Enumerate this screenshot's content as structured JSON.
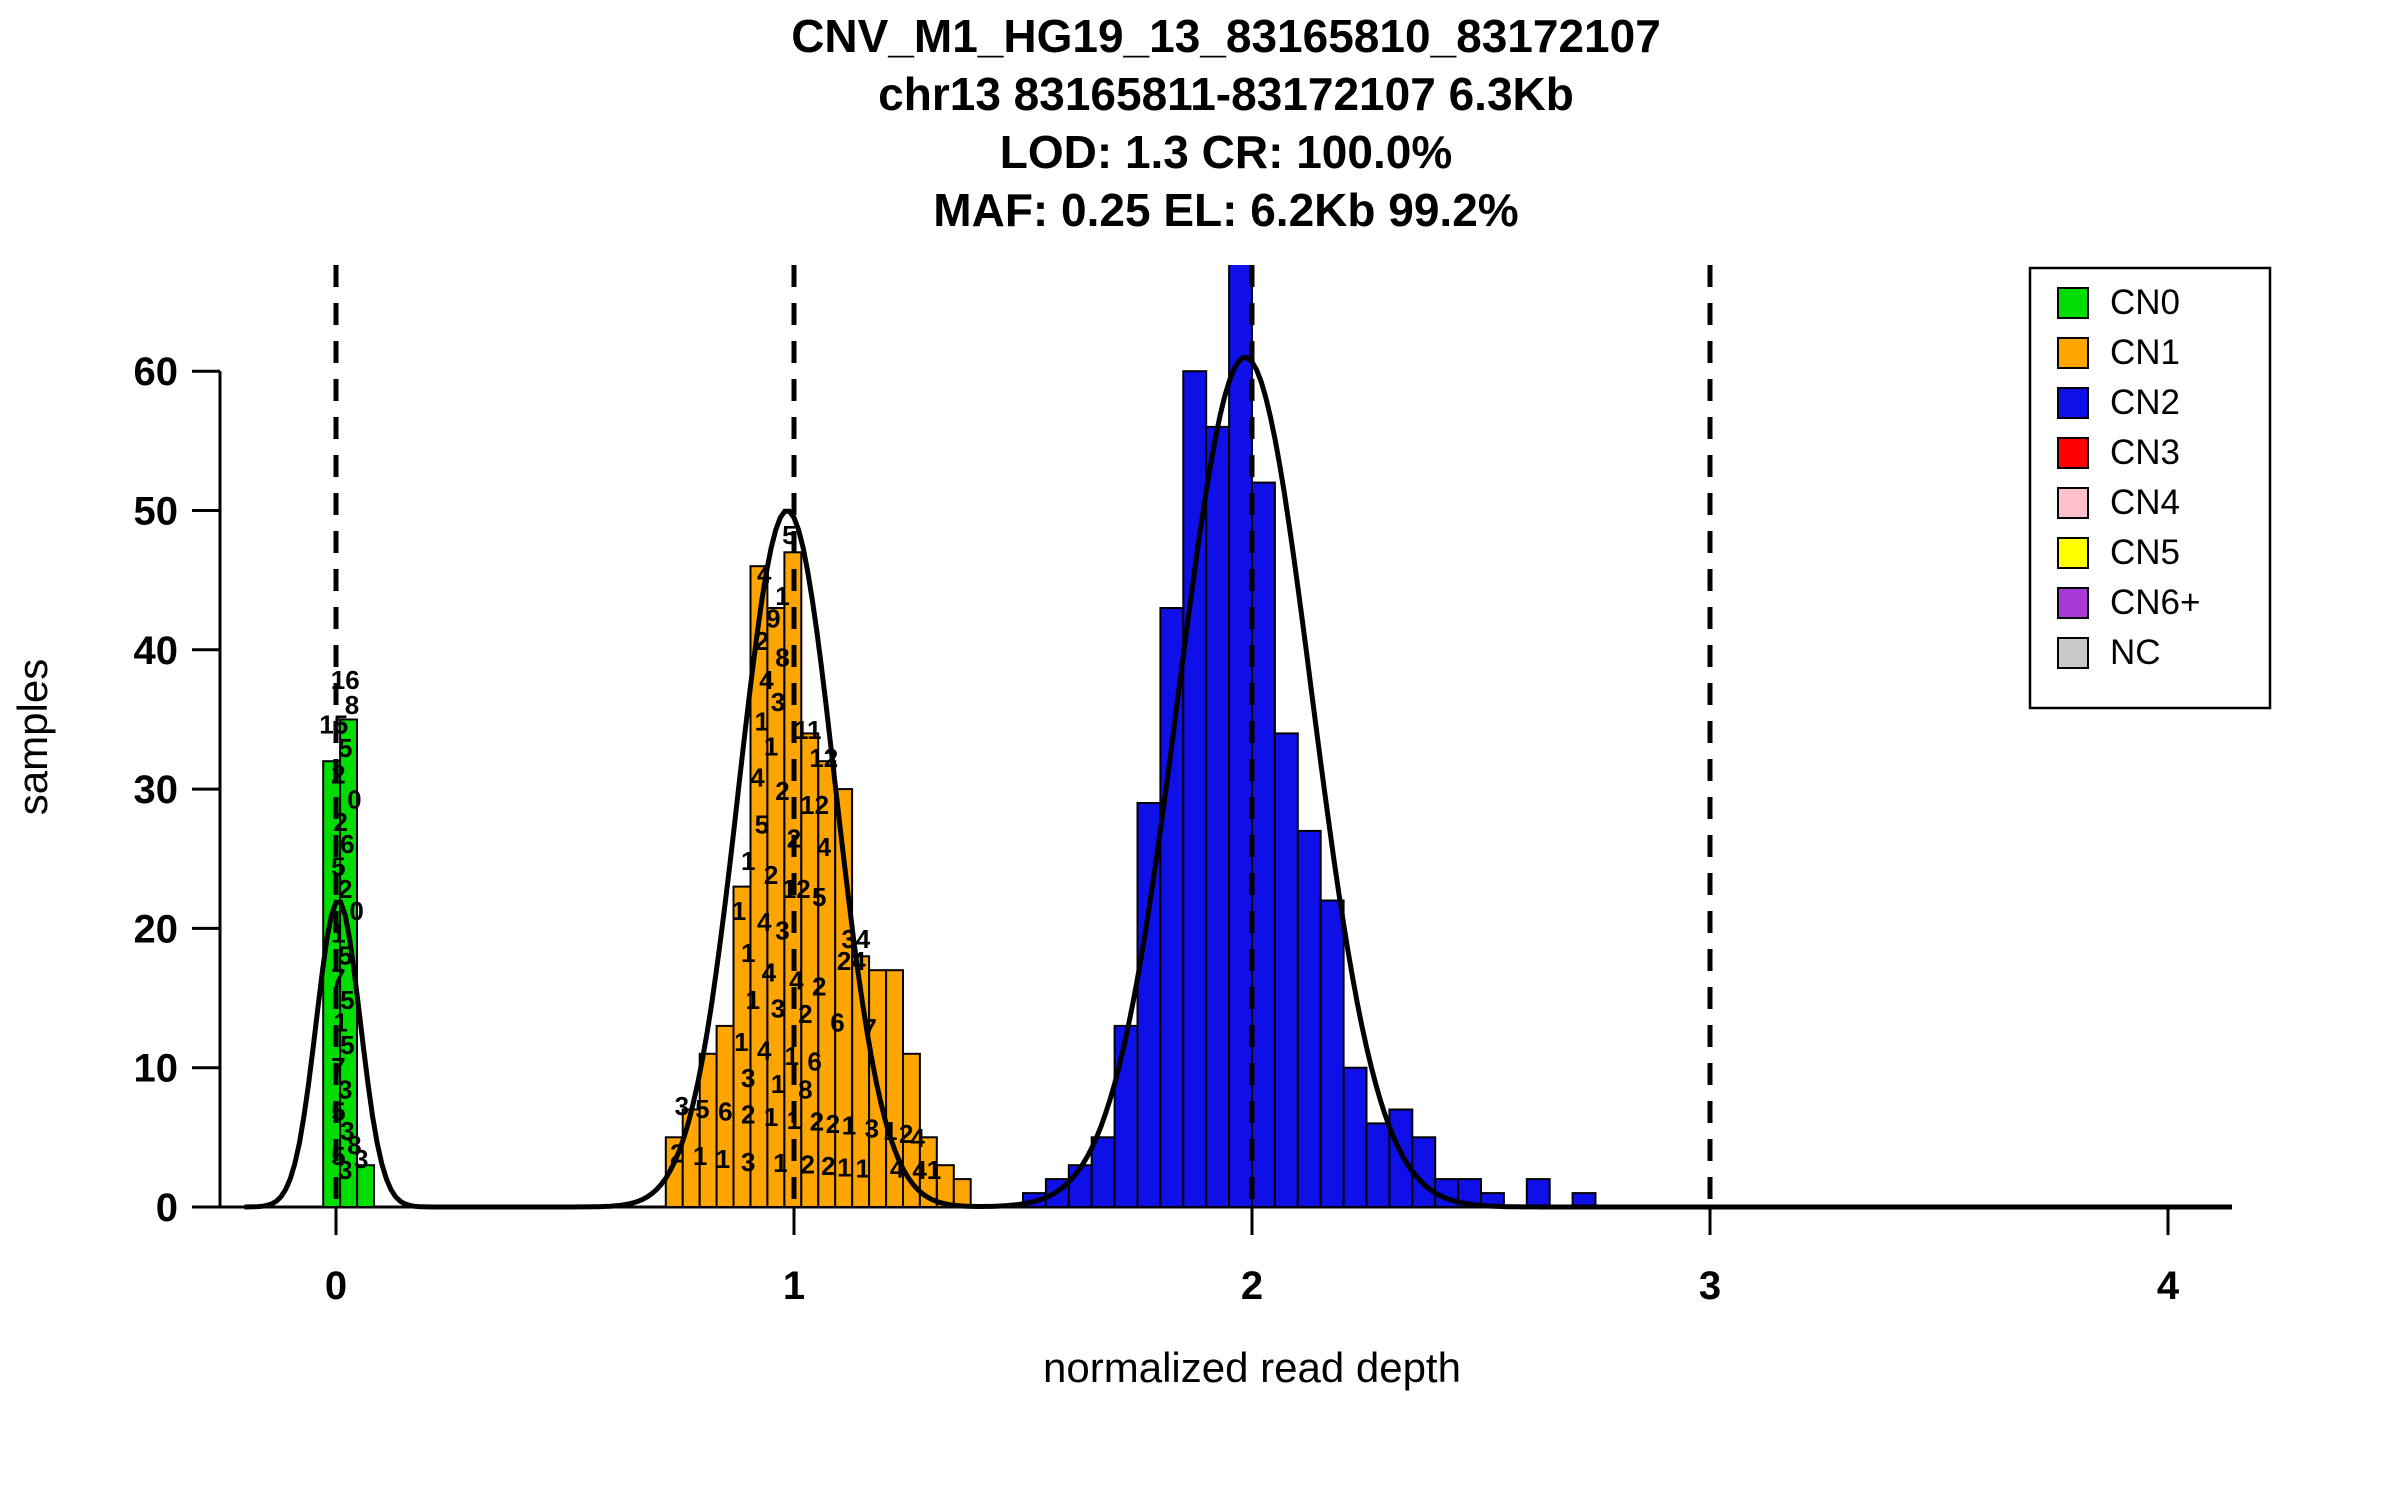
{
  "figure": {
    "background": "#ffffff"
  },
  "chart_data": {
    "type": "bar",
    "title_lines": [
      "CNV_M1_HG19_13_83165810_83172107",
      "chr13 83165811-83172107 6.3Kb",
      "LOD: 1.3 CR: 100.0%",
      "MAF: 0.25 EL: 6.2Kb 99.2%"
    ],
    "xlabel": "normalized read depth",
    "ylabel": "samples",
    "xlim": [
      -0.25,
      4.25
    ],
    "ylim": [
      0,
      67.5
    ],
    "xticks": [
      "0",
      "1",
      "2",
      "3",
      "4"
    ],
    "yticks": [
      "0",
      "10",
      "20",
      "30",
      "40",
      "50",
      "60"
    ],
    "grid": false,
    "dashed_guides_x": [
      0,
      1,
      2,
      3
    ],
    "series": [
      {
        "name": "CN0",
        "color": "#00DD00",
        "bin_width": 0.037,
        "bars": [
          [
            -0.028,
            32
          ],
          [
            0.009,
            35
          ],
          [
            0.046,
            3
          ]
        ]
      },
      {
        "name": "CN1",
        "color": "#FFA500",
        "bin_width": 0.037,
        "bars": [
          [
            0.72,
            5
          ],
          [
            0.757,
            7
          ],
          [
            0.794,
            11
          ],
          [
            0.831,
            13
          ],
          [
            0.868,
            23
          ],
          [
            0.905,
            46
          ],
          [
            0.942,
            43
          ],
          [
            0.979,
            47
          ],
          [
            1.016,
            34
          ],
          [
            1.053,
            32
          ],
          [
            1.09,
            30
          ],
          [
            1.127,
            18
          ],
          [
            1.164,
            17
          ],
          [
            1.201,
            17
          ],
          [
            1.238,
            11
          ],
          [
            1.275,
            5
          ],
          [
            1.312,
            3
          ],
          [
            1.349,
            2
          ]
        ]
      },
      {
        "name": "CN2",
        "color": "#0F0FE8",
        "bin_width": 0.05,
        "bars": [
          [
            1.5,
            1
          ],
          [
            1.55,
            2
          ],
          [
            1.6,
            3
          ],
          [
            1.65,
            5
          ],
          [
            1.7,
            13
          ],
          [
            1.75,
            29
          ],
          [
            1.8,
            43
          ],
          [
            1.85,
            60
          ],
          [
            1.9,
            56
          ],
          [
            1.95,
            69
          ],
          [
            2.0,
            52
          ],
          [
            2.05,
            34
          ],
          [
            2.1,
            27
          ],
          [
            2.15,
            22
          ],
          [
            2.2,
            10
          ],
          [
            2.25,
            6
          ],
          [
            2.3,
            7
          ],
          [
            2.35,
            5
          ],
          [
            2.4,
            2
          ],
          [
            2.45,
            2
          ],
          [
            2.5,
            1
          ],
          [
            2.6,
            2
          ],
          [
            2.7,
            1
          ]
        ]
      }
    ],
    "density_curves": [
      {
        "mean": 0.005,
        "sd": 0.048,
        "peak": 22
      },
      {
        "mean": 0.985,
        "sd": 0.105,
        "peak": 50
      },
      {
        "mean": 1.985,
        "sd": 0.145,
        "peak": 61
      }
    ],
    "overlay_labels": [
      [
        "16",
        0.02,
        37.2
      ],
      [
        "8",
        0.035,
        35.4
      ],
      [
        "15",
        -0.005,
        34.0
      ],
      [
        "5",
        0.02,
        32.3
      ],
      [
        "2",
        0.005,
        30.4
      ],
      [
        "0",
        0.04,
        28.6
      ],
      [
        "2",
        0.01,
        27.0
      ],
      [
        "6",
        0.025,
        25.4
      ],
      [
        "5",
        0.005,
        23.8
      ],
      [
        "2",
        0.02,
        22.2
      ],
      [
        "0",
        0.045,
        20.6
      ],
      [
        "1",
        0.005,
        19.0
      ],
      [
        "5",
        0.02,
        17.4
      ],
      [
        "7",
        0.005,
        15.8
      ],
      [
        "5",
        0.025,
        14.2
      ],
      [
        "1",
        0.01,
        12.6
      ],
      [
        "5",
        0.025,
        11.0
      ],
      [
        "7",
        0.005,
        9.4
      ],
      [
        "3",
        0.02,
        7.8
      ],
      [
        "5",
        0.005,
        6.2
      ],
      [
        "3",
        0.025,
        4.8
      ],
      [
        "8",
        0.04,
        3.8
      ],
      [
        "5",
        0.005,
        3.0
      ],
      [
        "3",
        0.055,
        2.8
      ],
      [
        "3",
        0.02,
        2.0
      ],
      [
        "5",
        0.99,
        47.6
      ],
      [
        "4",
        0.935,
        44.8
      ],
      [
        "1",
        0.975,
        43.2
      ],
      [
        "9",
        0.955,
        41.6
      ],
      [
        "2",
        0.93,
        40.0
      ],
      [
        "8",
        0.975,
        38.8
      ],
      [
        "4",
        0.94,
        37.2
      ],
      [
        "3",
        0.965,
        35.6
      ],
      [
        "1",
        0.93,
        34.2
      ],
      [
        "11",
        1.03,
        33.6
      ],
      [
        "1",
        0.95,
        32.4
      ],
      [
        "12",
        1.065,
        31.6
      ],
      [
        "4",
        0.92,
        30.2
      ],
      [
        "2",
        0.975,
        29.2
      ],
      [
        "12",
        1.045,
        28.2
      ],
      [
        "5",
        0.93,
        26.8
      ],
      [
        "2",
        1.0,
        25.8
      ],
      [
        "4",
        1.065,
        25.2
      ],
      [
        "1",
        0.9,
        24.2
      ],
      [
        "2",
        0.95,
        23.2
      ],
      [
        "12",
        1.005,
        22.2
      ],
      [
        "5",
        1.055,
        21.6
      ],
      [
        "1",
        0.88,
        20.6
      ],
      [
        "4",
        0.935,
        19.8
      ],
      [
        "3",
        0.975,
        19.2
      ],
      [
        "34",
        1.135,
        18.6
      ],
      [
        "1",
        0.9,
        17.6
      ],
      [
        "24",
        1.125,
        17.0
      ],
      [
        "4",
        0.945,
        16.2
      ],
      [
        "4",
        1.005,
        15.6
      ],
      [
        "2",
        1.055,
        15.2
      ],
      [
        "1",
        0.91,
        14.2
      ],
      [
        "3",
        0.965,
        13.6
      ],
      [
        "2",
        1.025,
        13.2
      ],
      [
        "6",
        1.095,
        12.6
      ],
      [
        "7",
        1.165,
        12.2
      ],
      [
        "1",
        0.885,
        11.2
      ],
      [
        "4",
        0.935,
        10.6
      ],
      [
        "1",
        0.995,
        10.2
      ],
      [
        "6",
        1.045,
        9.8
      ],
      [
        "3",
        0.9,
        8.6
      ],
      [
        "1",
        0.965,
        8.2
      ],
      [
        "8",
        1.025,
        7.8
      ],
      [
        "3",
        0.755,
        6.6
      ],
      [
        "5",
        0.8,
        6.4
      ],
      [
        "6",
        0.85,
        6.2
      ],
      [
        "2",
        0.9,
        6.0
      ],
      [
        "1",
        0.95,
        5.8
      ],
      [
        "1",
        1.0,
        5.6
      ],
      [
        "2",
        1.05,
        5.5
      ],
      [
        "2",
        1.085,
        5.3
      ],
      [
        "1",
        1.12,
        5.2
      ],
      [
        "3",
        1.17,
        5.0
      ],
      [
        "1",
        1.21,
        4.8
      ],
      [
        "2",
        1.245,
        4.6
      ],
      [
        "4",
        1.27,
        4.3
      ],
      [
        "2",
        0.745,
        3.2
      ],
      [
        "1",
        0.795,
        3.0
      ],
      [
        "1",
        0.845,
        2.8
      ],
      [
        "3",
        0.9,
        2.6
      ],
      [
        "1",
        0.97,
        2.5
      ],
      [
        "2",
        1.03,
        2.4
      ],
      [
        "2",
        1.075,
        2.3
      ],
      [
        "1",
        1.11,
        2.2
      ],
      [
        "1",
        1.15,
        2.1
      ],
      [
        "4",
        1.225,
        2.1
      ],
      [
        "41",
        1.29,
        2.0
      ]
    ],
    "legend": {
      "position": "top-right",
      "entries": [
        {
          "label": "CN0",
          "color": "#00DD00"
        },
        {
          "label": "CN1",
          "color": "#FFA500"
        },
        {
          "label": "CN2",
          "color": "#0F0FE8"
        },
        {
          "label": "CN3",
          "color": "#FF0000"
        },
        {
          "label": "CN4",
          "color": "#FFC0CB"
        },
        {
          "label": "CN5",
          "color": "#FFFF00"
        },
        {
          "label": "CN6+",
          "color": "#A838D8"
        },
        {
          "label": "NC",
          "color": "#C8C8C8"
        }
      ]
    }
  }
}
